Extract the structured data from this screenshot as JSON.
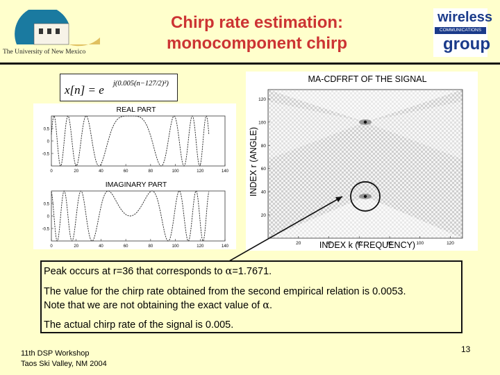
{
  "header": {
    "title_line1": "Chirp rate estimation:",
    "title_line2": "monocomponent chirp",
    "unm_logo_text": "The University of New Mexico",
    "wcg_logo": {
      "line1": "wireless",
      "line2": "COMMUNICATIONS",
      "line3": "group"
    }
  },
  "equation": {
    "lhs": "x[n] = e",
    "exponent": "j(0.005(n−127/2)²)"
  },
  "left_figure": {
    "real_title": "REAL PART",
    "imag_title": "IMAGINARY PART",
    "yticks": [
      "0.5",
      "0",
      "-0.5"
    ],
    "xticks": [
      "0",
      "20",
      "40",
      "60",
      "80",
      "100",
      "120",
      "140"
    ]
  },
  "right_figure": {
    "title": "MA-CDFRFT OF THE SIGNAL",
    "xlabel": "INDEX k (FREQUENCY)",
    "ylabel": "INDEX r (ANGLE)",
    "yticks": [
      "120",
      "100",
      "80",
      "60",
      "40",
      "20"
    ],
    "xticks": [
      "20",
      "40",
      "60",
      "80",
      "100",
      "120"
    ]
  },
  "chart_data": [
    {
      "type": "line",
      "title": "REAL PART",
      "xlabel": "",
      "ylabel": "",
      "xlim": [
        0,
        140
      ],
      "ylim": [
        -1,
        1
      ],
      "series": [
        {
          "formula": "cos(0.005*(n-127/2)^2)",
          "n_range": [
            0,
            127
          ]
        }
      ]
    },
    {
      "type": "line",
      "title": "IMAGINARY PART",
      "xlabel": "",
      "ylabel": "",
      "xlim": [
        0,
        140
      ],
      "ylim": [
        -1,
        1
      ],
      "series": [
        {
          "formula": "sin(0.005*(n-127/2)^2)",
          "n_range": [
            0,
            127
          ]
        }
      ]
    },
    {
      "type": "heatmap",
      "title": "MA-CDFRFT OF THE SIGNAL",
      "xlabel": "INDEX k (FREQUENCY)",
      "ylabel": "INDEX r (ANGLE)",
      "xlim": [
        0,
        128
      ],
      "ylim": [
        0,
        128
      ],
      "peaks": [
        {
          "k": 64,
          "r": 36
        },
        {
          "k": 64,
          "r": 100
        }
      ],
      "highlighted_peak": {
        "k": 64,
        "r": 36
      }
    }
  ],
  "body": {
    "line1_a": "Peak occurs at r=36 that corresponds to ",
    "line1_b": "=1.7671.",
    "line2": "The value for the chirp rate obtained from the second empirical relation is 0.0053.",
    "line3_a": "Note that we are not obtaining the exact value of ",
    "line3_b": ".",
    "line4": "The actual chirp rate of the signal is 0.005.",
    "alpha": "α"
  },
  "footer": {
    "line1": "11th DSP Workshop",
    "line2": "Taos Ski Valley, NM 2004",
    "page": "13"
  }
}
